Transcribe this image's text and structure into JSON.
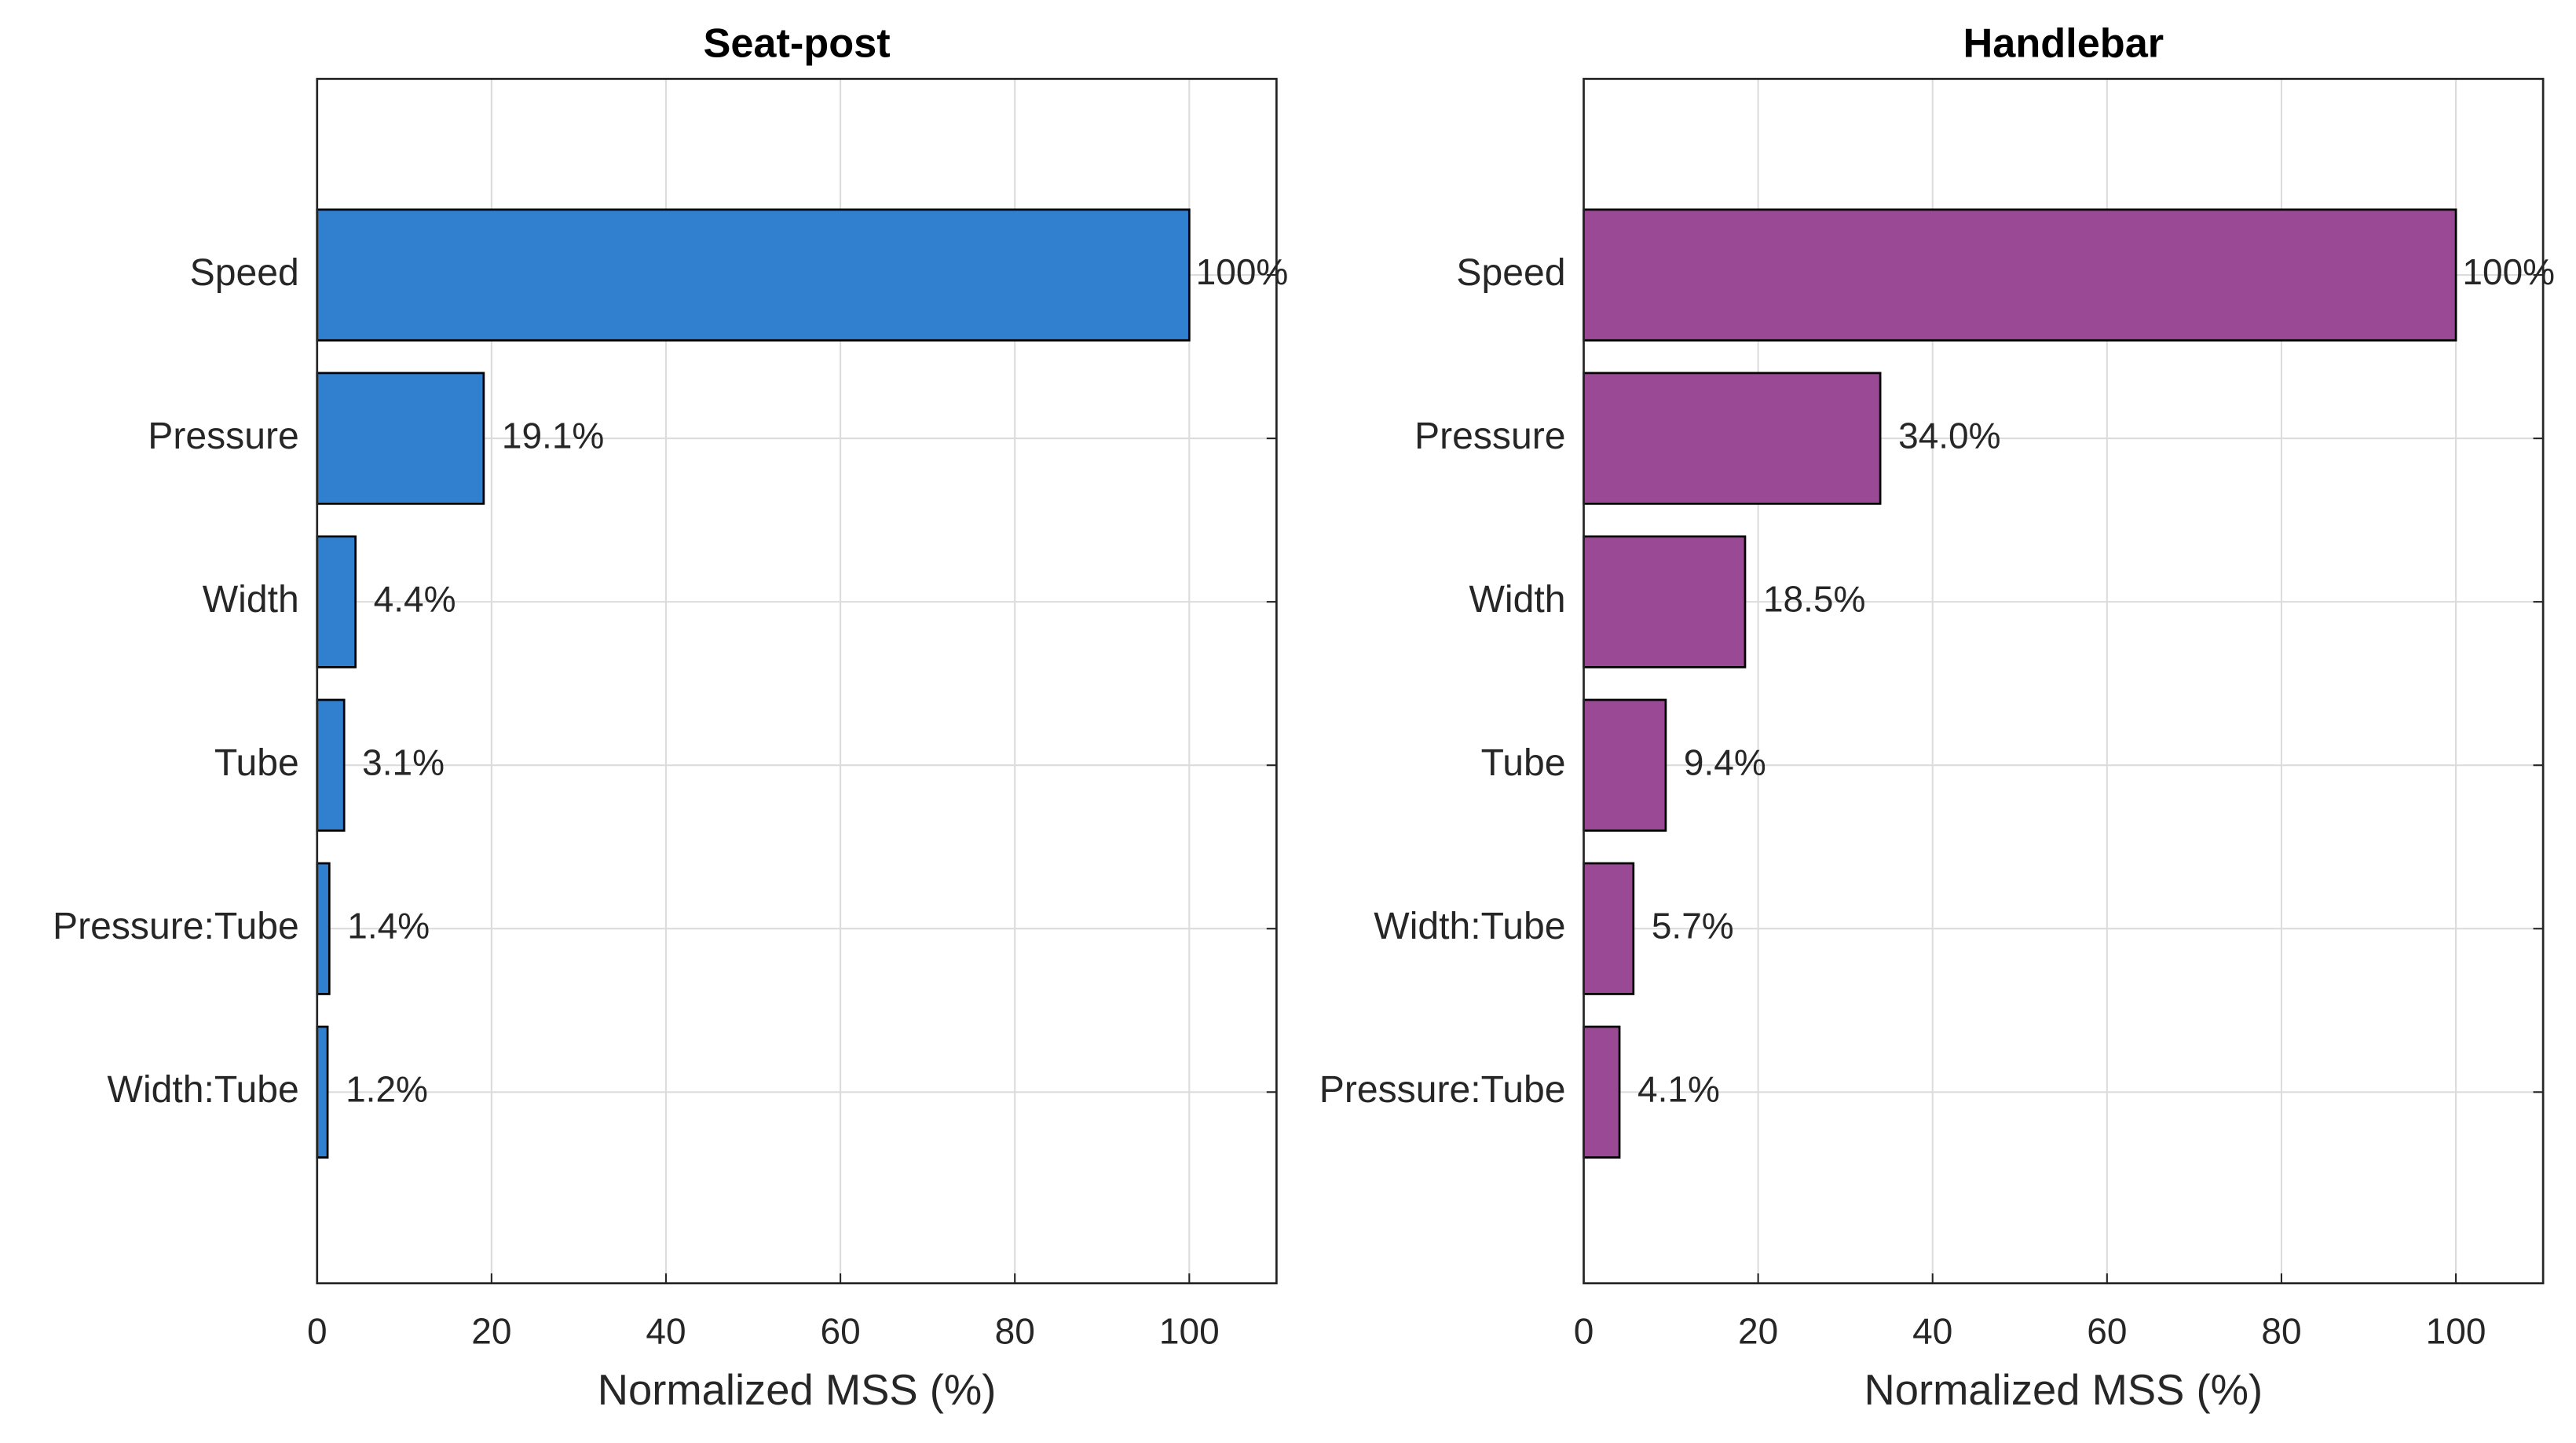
{
  "chart_data": [
    {
      "type": "barh",
      "title": "Seat-post",
      "xlabel": "Normalized MSS (%)",
      "categories": [
        "Speed",
        "Pressure",
        "Width",
        "Tube",
        "Pressure:Tube",
        "Width:Tube"
      ],
      "values": [
        100,
        19.1,
        4.4,
        3.1,
        1.4,
        1.2
      ],
      "value_labels": [
        "100%",
        "19.1%",
        "4.4%",
        "3.1%",
        "1.4%",
        "1.2%"
      ],
      "color": "#3080cf",
      "xlim": [
        0,
        110
      ],
      "xticks": [
        0,
        20,
        40,
        60,
        80,
        100
      ],
      "grid": true
    },
    {
      "type": "barh",
      "title": "Handlebar",
      "xlabel": "Normalized MSS (%)",
      "categories": [
        "Speed",
        "Pressure",
        "Width",
        "Tube",
        "Width:Tube",
        "Pressure:Tube"
      ],
      "values": [
        100,
        34.0,
        18.5,
        9.4,
        5.7,
        4.1
      ],
      "value_labels": [
        "100%",
        "34.0%",
        "18.5%",
        "9.4%",
        "5.7%",
        "4.1%"
      ],
      "color": "#9a4a94",
      "xlim": [
        0,
        110
      ],
      "xticks": [
        0,
        20,
        40,
        60,
        80,
        100
      ],
      "grid": true
    }
  ]
}
